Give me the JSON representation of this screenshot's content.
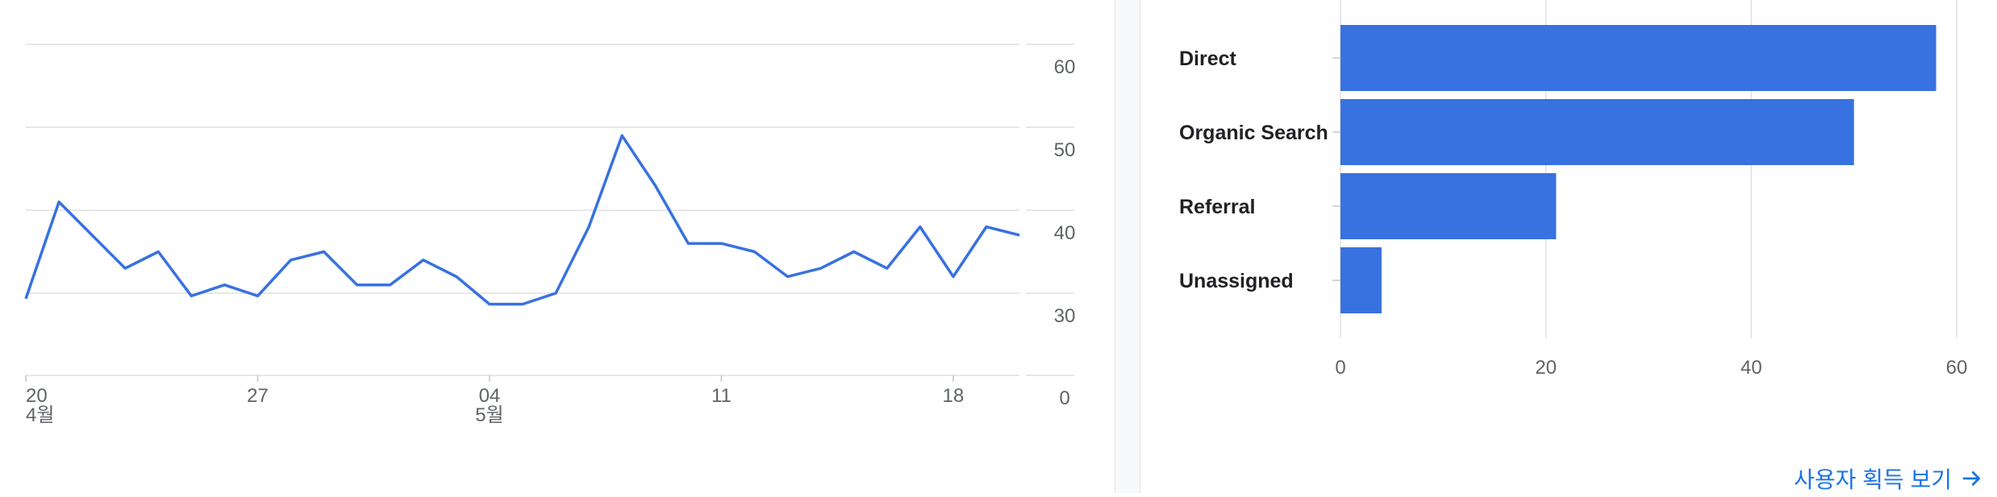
{
  "colors": {
    "accent": "#3871e0",
    "grid": "#e0e0e0",
    "link": "#1a73e8"
  },
  "chart_data": [
    {
      "type": "line",
      "title": "",
      "xlabel": "",
      "ylabel": "",
      "x_ticks": [
        {
          "day": "20",
          "month": "4월",
          "index": 0
        },
        {
          "day": "27",
          "month": "",
          "index": 7
        },
        {
          "day": "04",
          "month": "5월",
          "index": 14
        },
        {
          "day": "11",
          "month": "",
          "index": 21
        },
        {
          "day": "18",
          "month": "",
          "index": 28
        }
      ],
      "y_ticks": [
        0,
        30,
        40,
        50,
        60
      ],
      "ylim": [
        0,
        60
      ],
      "grid": true,
      "series": [
        {
          "values": [
            28,
            41,
            37,
            33,
            35,
            29,
            31,
            29,
            34,
            35,
            31,
            31,
            34,
            32,
            26,
            26,
            30,
            38,
            49,
            43,
            36,
            36,
            35,
            32,
            33,
            35,
            33,
            38,
            32,
            38,
            37
          ]
        }
      ]
    },
    {
      "type": "bar",
      "orientation": "horizontal",
      "title": "",
      "xlabel": "",
      "ylabel": "",
      "categories": [
        "Direct",
        "Organic Search",
        "Referral",
        "Unassigned"
      ],
      "values": [
        58,
        50,
        21,
        4
      ],
      "xlim": [
        0,
        60
      ],
      "x_ticks": [
        0,
        20,
        40,
        60
      ],
      "grid": true
    }
  ],
  "link": {
    "label": "사용자 획득 보기",
    "icon": "arrow-right-icon"
  }
}
